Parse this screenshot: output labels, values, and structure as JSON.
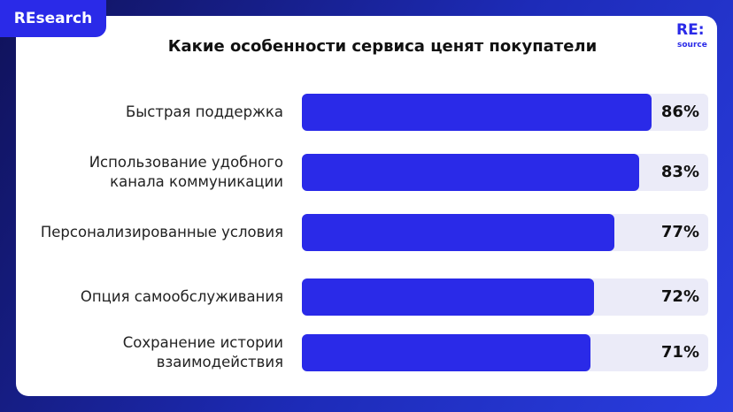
{
  "header": {
    "tag": "REsearch",
    "logo": "RE:",
    "logo_sub": "source"
  },
  "chart_data": {
    "type": "hbar",
    "title": "Какие особенности сервиса ценят покупатели",
    "categories": [
      "Быстрая поддержка",
      "Использование удобного канала коммуникации",
      "Персонализированные условия",
      "Опция самообслуживания",
      "Сохранение истории взаимодействия"
    ],
    "values": [
      86,
      83,
      77,
      72,
      71
    ],
    "value_labels": [
      "86%",
      "83%",
      "77%",
      "72%",
      "71%"
    ],
    "color": "#2a2ae8",
    "track_color": "#ebebf8",
    "xlim": [
      0,
      100
    ]
  }
}
